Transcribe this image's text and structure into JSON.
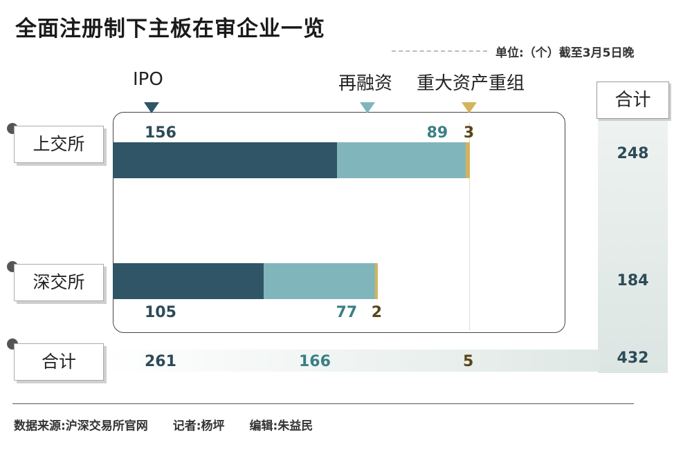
{
  "title": "全面注册制下主板在审企业一览",
  "unit_note": "单位:（个）截至3月5日晚",
  "footer": {
    "source": "数据来源:沪深交易所官网",
    "reporter": "记者:杨坪",
    "editor": "编辑:朱益民"
  },
  "colors": {
    "ipo": "#2f5566",
    "refinancing": "#80b6bb",
    "restructuring": "#d4b45a",
    "ipo_text": "#2d4b57",
    "refinancing_text": "#3a7f84",
    "restructuring_text": "#5a4519"
  },
  "chart_data": {
    "type": "bar",
    "stacked": true,
    "orientation": "horizontal",
    "title": "全面注册制下主板在审企业一览",
    "unit": "单位:（个）",
    "categories": [
      "上交所",
      "深交所"
    ],
    "series": [
      {
        "name": "IPO",
        "values": [
          156,
          105
        ]
      },
      {
        "name": "再融资",
        "values": [
          89,
          77
        ]
      },
      {
        "name": "重大资产重组",
        "values": [
          3,
          2
        ]
      }
    ],
    "row_totals": [
      248,
      184
    ],
    "column_totals": {
      "label": "合计",
      "values": [
        261,
        166,
        5
      ],
      "grand_total": 432
    },
    "total_header": "合计"
  }
}
